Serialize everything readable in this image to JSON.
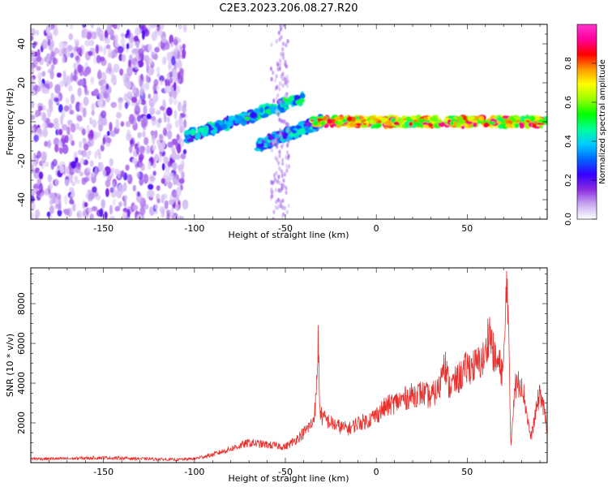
{
  "title": "C2E3.2023.206.08.27.R20",
  "chart_data": [
    {
      "type": "heatmap",
      "xlabel": "Height of straight line (km)",
      "ylabel": "Frequency (Hz)",
      "xlim": [
        -190,
        94
      ],
      "ylim": [
        -50,
        50
      ],
      "xticks": [
        -150,
        -100,
        -50,
        0,
        50
      ],
      "yticks": [
        -40,
        -20,
        0,
        20,
        40
      ],
      "colorbar": {
        "label": "Normalized spectral amplitude",
        "range": [
          0,
          1
        ],
        "ticks": [
          0.0,
          0.2,
          0.4,
          0.6,
          0.8
        ],
        "colors": [
          "#ffffff",
          "#c7a8f0",
          "#8a2be2",
          "#3300ff",
          "#0066ff",
          "#00ccff",
          "#00ff99",
          "#00ff00",
          "#99ff00",
          "#ffff00",
          "#ff9900",
          "#ff0000",
          "#ff0099",
          "#ff33cc"
        ]
      },
      "features": [
        {
          "x_range": [
            -190,
            -105
          ],
          "freq_range": [
            -50,
            50
          ],
          "amplitude": 0.15,
          "kind": "noise"
        },
        {
          "x_range": [
            -105,
            -40
          ],
          "freq_range": [
            -8,
            12
          ],
          "amplitude": 0.45,
          "kind": "rising streak"
        },
        {
          "x_range": [
            -65,
            -30
          ],
          "freq_range": [
            -12,
            0
          ],
          "amplitude": 0.4,
          "kind": "rising streak"
        },
        {
          "x_range": [
            -35,
            94
          ],
          "freq_range": [
            -2,
            2
          ],
          "amplitude": 0.85,
          "kind": "stable band"
        }
      ],
      "grid": false
    },
    {
      "type": "line",
      "xlabel": "Height of straight line (km)",
      "ylabel": "SNR (10 * v/v)",
      "xlim": [
        -190,
        94
      ],
      "ylim": [
        0,
        9800
      ],
      "xticks": [
        -150,
        -100,
        -50,
        0,
        50
      ],
      "yticks": [
        2000,
        4000,
        6000,
        8000
      ],
      "color": "#e8312e",
      "series": [
        {
          "x": [
            -190,
            -170,
            -150,
            -130,
            -110,
            -100,
            -90,
            -80,
            -70,
            -60,
            -50,
            -45,
            -40,
            -35,
            -33,
            -32,
            -31,
            -30,
            -25,
            -20,
            -15,
            -10,
            -5,
            0,
            5,
            10,
            15,
            20,
            25,
            30,
            35,
            37,
            40,
            45,
            50,
            55,
            60,
            62,
            65,
            70,
            72,
            74,
            76,
            80,
            85,
            90,
            94
          ],
          "y": [
            200,
            200,
            250,
            200,
            150,
            200,
            400,
            700,
            1000,
            900,
            800,
            1100,
            1500,
            2000,
            3200,
            6300,
            2700,
            2300,
            2000,
            1800,
            1700,
            2000,
            2100,
            2400,
            2800,
            3000,
            3200,
            3400,
            3500,
            3300,
            3800,
            5400,
            3800,
            4200,
            4800,
            4900,
            5300,
            6800,
            5200,
            4600,
            9800,
            800,
            3800,
            4100,
            1200,
            3600,
            1800
          ]
        }
      ],
      "grid": false
    }
  ]
}
